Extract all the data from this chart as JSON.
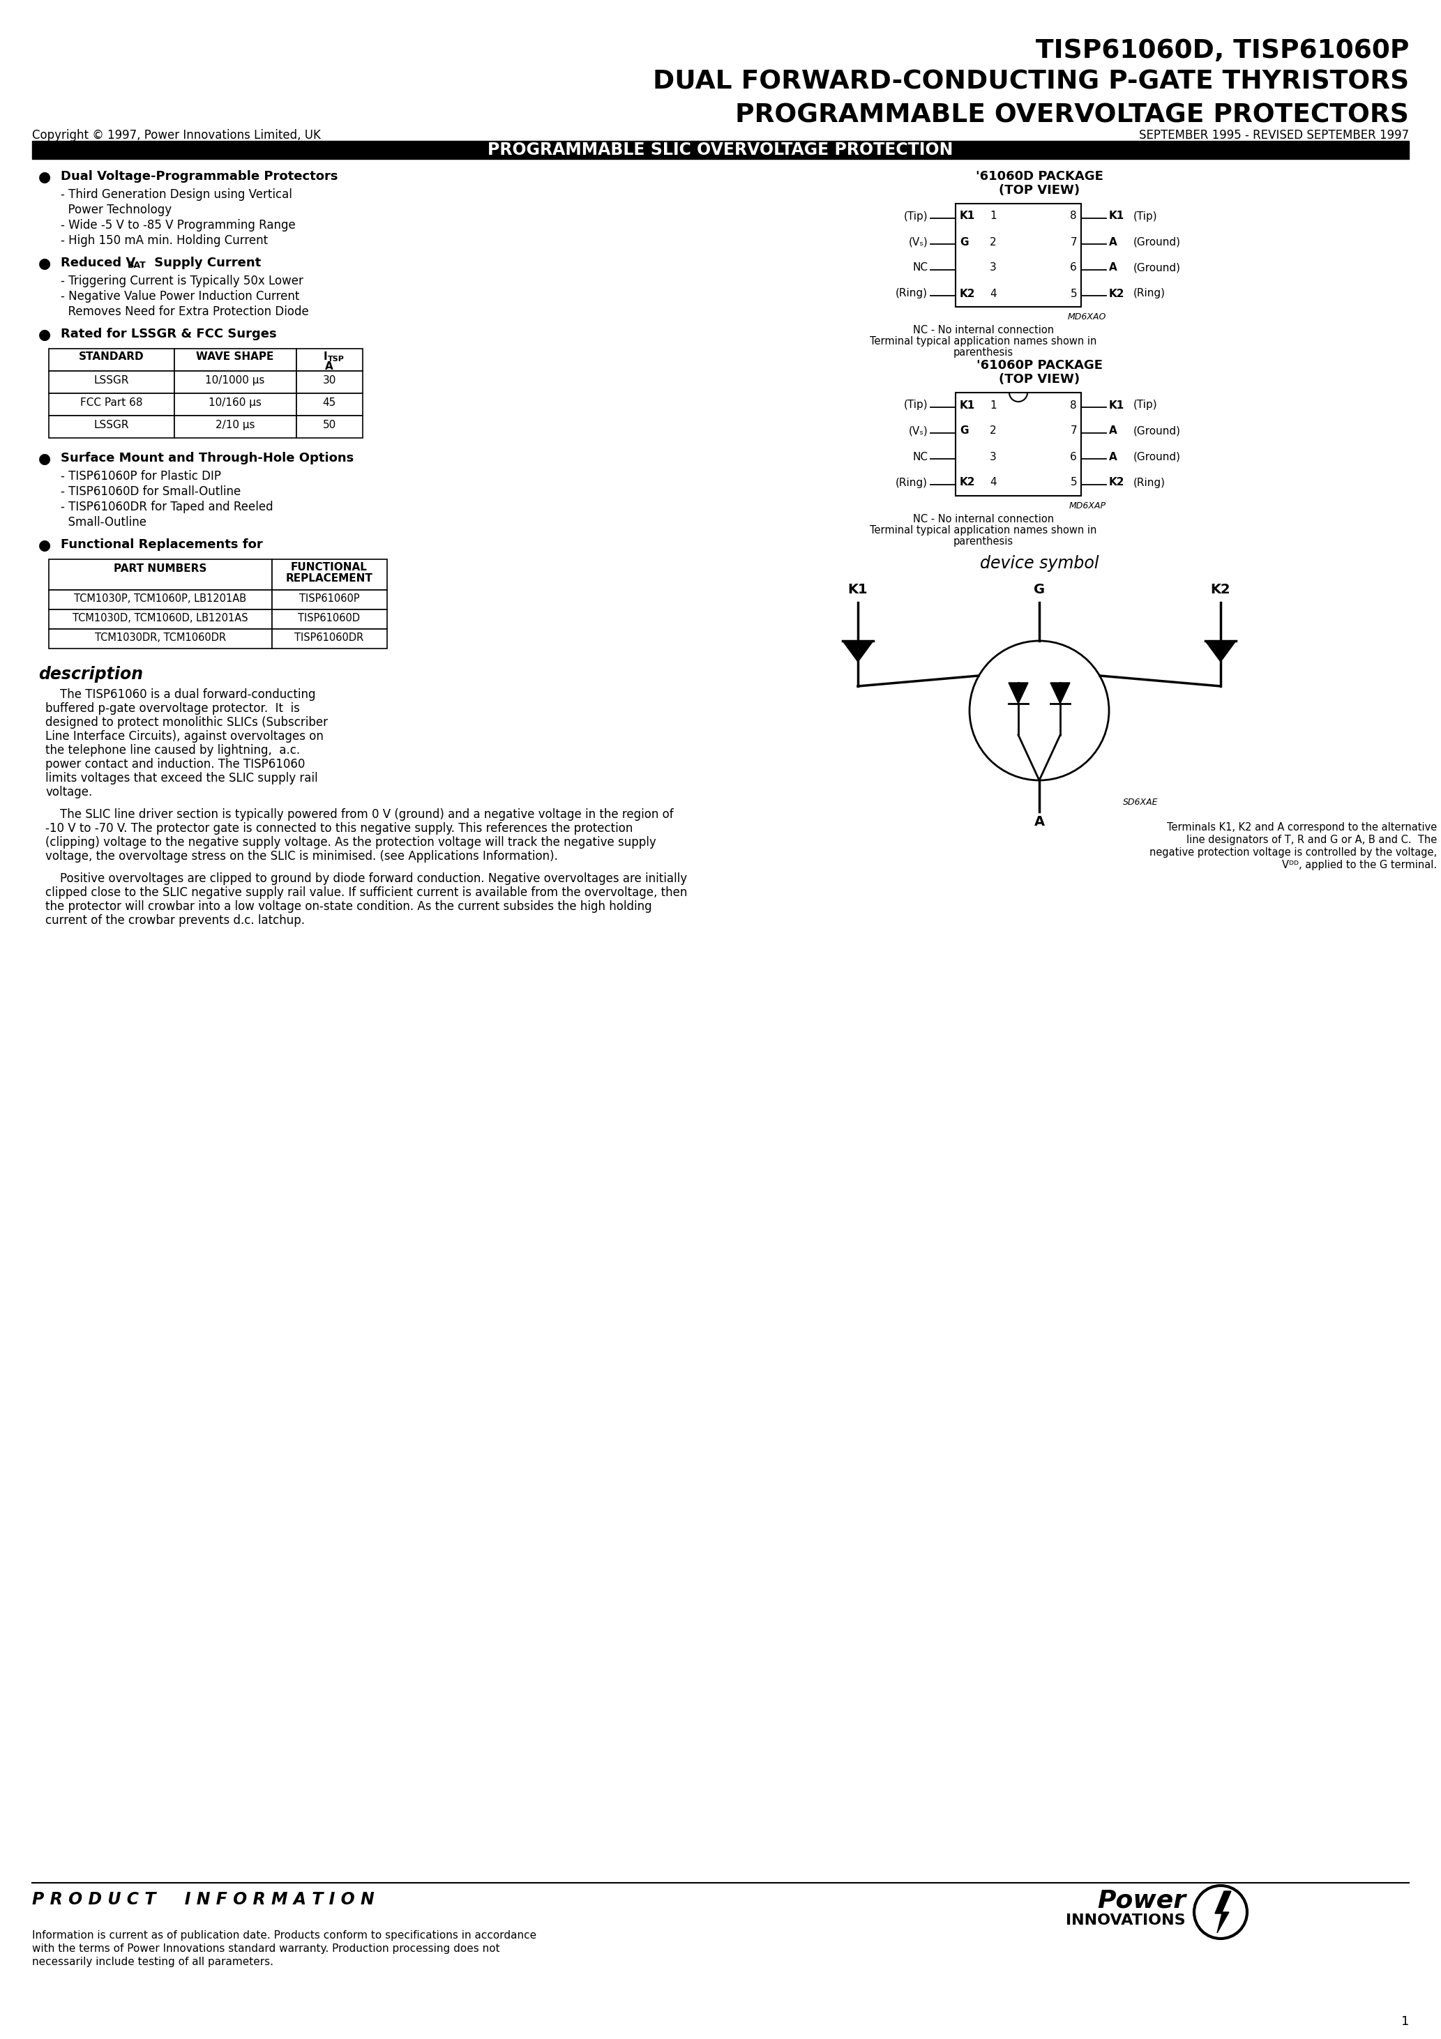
{
  "title_line1": "TISP61060D, TISP61060P",
  "title_line2": "DUAL FORWARD-CONDUCTING P-GATE THYRISTORS",
  "title_line3": "PROGRAMMABLE OVERVOLTAGE PROTECTORS",
  "copyright": "Copyright © 1997, Power Innovations Limited, UK",
  "date_info": "SEPTEMBER 1995 - REVISED SEPTEMBER 1997",
  "section_title": "PROGRAMMABLE SLIC OVERVOLTAGE PROTECTION",
  "table1_rows": [
    [
      "LSSGR",
      "10/1000 μs",
      "30"
    ],
    [
      "FCC Part 68",
      "10/160 μs",
      "45"
    ],
    [
      "LSSGR",
      "2/10 μs",
      "50"
    ]
  ],
  "table2_rows": [
    [
      "TCM1030P, TCM1060P, LB1201AB",
      "TISP61060P"
    ],
    [
      "TCM1030D, TCM1060D, LB1201AS",
      "TISP61060D"
    ],
    [
      "TCM1030DR, TCM1060DR",
      "TISP61060DR"
    ]
  ],
  "description_title": "description",
  "description_para1_lines": [
    "    The TISP61060 is a dual forward-conducting",
    "buffered p-gate overvoltage protector.  It  is",
    "designed to protect monolithic SLICs (Subscriber",
    "Line Interface Circuits), against overvoltages on",
    "the telephone line caused by lightning,  a.c.",
    "power contact and induction. The TISP61060",
    "limits voltages that exceed the SLIC supply rail",
    "voltage."
  ],
  "description_para2_lines": [
    "    The SLIC line driver section is typically powered from 0 V (ground) and a negative voltage in the region of",
    "-10 V to -70 V. The protector gate is connected to this negative supply. This references the protection",
    "(clipping) voltage to the negative supply voltage. As the protection voltage will track the negative supply",
    "voltage, the overvoltage stress on the SLIC is minimised. (see Applications Information)."
  ],
  "description_para3_lines": [
    "    Positive overvoltages are clipped to ground by diode forward conduction. Negative overvoltages are initially",
    "clipped close to the SLIC negative supply rail value. If sufficient current is available from the overvoltage, then",
    "the protector will crowbar into a low voltage on-state condition. As the current subsides the high holding",
    "current of the crowbar prevents d.c. latchup."
  ],
  "footer_italic": "P R O D U C T     I N F O R M A T I O N",
  "footer_text_lines": [
    "Information is current as of publication date. Products conform to specifications in accordance",
    "with the terms of Power Innovations standard warranty. Production processing does not",
    "necessarily include testing of all parameters."
  ],
  "page_number": "1",
  "bg_color": "#ffffff",
  "text_color": "#000000",
  "header_bg": "#000000",
  "header_fg": "#ffffff"
}
